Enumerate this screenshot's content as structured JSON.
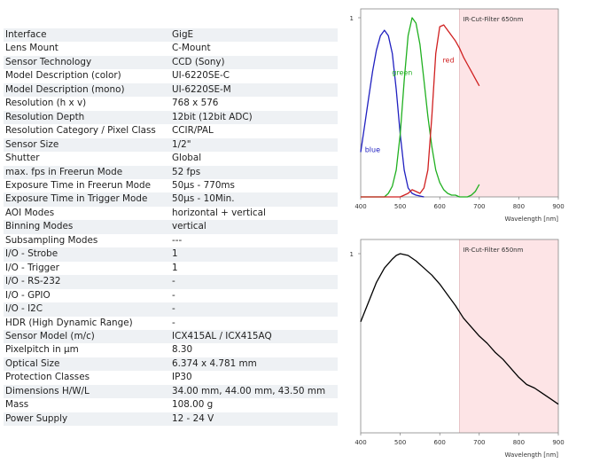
{
  "specs": [
    {
      "label": "Interface",
      "value": "GigE"
    },
    {
      "label": "Lens Mount",
      "value": "C-Mount"
    },
    {
      "label": "Sensor Technology",
      "value": "CCD (Sony)"
    },
    {
      "label": "Model Description (color)",
      "value": "UI-6220SE-C"
    },
    {
      "label": "Model Description (mono)",
      "value": "UI-6220SE-M"
    },
    {
      "label": "Resolution (h x v)",
      "value": "768 x 576"
    },
    {
      "label": "Resolution Depth",
      "value": "12bit (12bit ADC)"
    },
    {
      "label": "Resolution Category / Pixel Class",
      "value": "CCIR/PAL"
    },
    {
      "label": "Sensor Size",
      "value": "1/2\""
    },
    {
      "label": "Shutter",
      "value": "Global"
    },
    {
      "label": "max. fps in Freerun Mode",
      "value": "52 fps"
    },
    {
      "label": "Exposure Time in Freerun Mode",
      "value": "50µs - 770ms"
    },
    {
      "label": "Exposure Time in Trigger Mode",
      "value": "50µs - 10Min."
    },
    {
      "label": "AOI Modes",
      "value": "horizontal + vertical"
    },
    {
      "label": "Binning Modes",
      "value": "vertical"
    },
    {
      "label": "Subsampling Modes",
      "value": "---"
    },
    {
      "label": "I/O - Strobe",
      "value": "1"
    },
    {
      "label": "I/O - Trigger",
      "value": "1"
    },
    {
      "label": "I/O - RS-232",
      "value": "-"
    },
    {
      "label": "I/O - GPIO",
      "value": "-"
    },
    {
      "label": "I/O - I2C",
      "value": "-"
    },
    {
      "label": "HDR (High Dynamic Range)",
      "value": "-"
    },
    {
      "label": "Sensor Model (m/c)",
      "value": "ICX415AL / ICX415AQ"
    },
    {
      "label": "Pixelpitch in µm",
      "value": "8.30"
    },
    {
      "label": "Optical Size",
      "value": "6.374 x 4.781 mm"
    },
    {
      "label": "Protection Classes",
      "value": "IP30"
    },
    {
      "label": "Dimensions H/W/L",
      "value": "34.00 mm, 44.00 mm, 43.50 mm"
    },
    {
      "label": "Mass",
      "value": "108.00 g"
    },
    {
      "label": "Power Supply",
      "value": "12 - 24 V"
    }
  ],
  "chart_data": [
    {
      "type": "line",
      "title": "",
      "xlabel": "Wavelength [nm]",
      "ylabel": "",
      "xlim": [
        400,
        900
      ],
      "ylim": [
        0,
        1
      ],
      "xticks": [
        400,
        500,
        600,
        700,
        800,
        900
      ],
      "yticks": [
        1
      ],
      "grid": false,
      "legend": "inline labels",
      "annotation": {
        "text": "IR-Cut-Filter 650nm",
        "range": [
          650,
          900
        ],
        "color": "#fde4e6"
      },
      "series": [
        {
          "name": "blue",
          "color": "#2020c0",
          "x": [
            400,
            410,
            420,
            430,
            440,
            450,
            460,
            470,
            480,
            490,
            500,
            510,
            520,
            530,
            540,
            550,
            560
          ],
          "y": [
            0.25,
            0.4,
            0.55,
            0.7,
            0.82,
            0.9,
            0.93,
            0.9,
            0.8,
            0.6,
            0.35,
            0.15,
            0.05,
            0.02,
            0.01,
            0.005,
            0.0
          ]
        },
        {
          "name": "green",
          "color": "#20b020",
          "x": [
            400,
            430,
            460,
            470,
            480,
            490,
            500,
            510,
            520,
            530,
            540,
            550,
            560,
            570,
            580,
            590,
            600,
            610,
            620,
            630,
            640,
            650,
            660,
            670,
            680,
            690,
            700
          ],
          "y": [
            0.0,
            0.0,
            0.0,
            0.02,
            0.06,
            0.15,
            0.35,
            0.65,
            0.9,
            1.0,
            0.97,
            0.85,
            0.65,
            0.45,
            0.28,
            0.15,
            0.08,
            0.04,
            0.02,
            0.01,
            0.01,
            0.0,
            0.0,
            0.0,
            0.01,
            0.03,
            0.07
          ]
        },
        {
          "name": "red",
          "color": "#d02020",
          "x": [
            400,
            450,
            480,
            500,
            510,
            520,
            530,
            540,
            550,
            560,
            570,
            580,
            590,
            600,
            610,
            620,
            630,
            640,
            650,
            660,
            670,
            680,
            690,
            700
          ],
          "y": [
            0.0,
            0.0,
            0.0,
            0.0,
            0.01,
            0.02,
            0.04,
            0.03,
            0.02,
            0.05,
            0.15,
            0.45,
            0.8,
            0.95,
            0.96,
            0.93,
            0.9,
            0.87,
            0.83,
            0.78,
            0.74,
            0.7,
            0.66,
            0.62
          ]
        }
      ]
    },
    {
      "type": "line",
      "title": "",
      "xlabel": "Wavelength [nm]",
      "ylabel": "",
      "xlim": [
        400,
        900
      ],
      "ylim": [
        0,
        1
      ],
      "xticks": [
        400,
        500,
        600,
        700,
        800,
        900
      ],
      "yticks": [
        1
      ],
      "grid": false,
      "legend": "none",
      "annotation": {
        "text": "IR-Cut-Filter 650nm",
        "range": [
          650,
          900
        ],
        "color": "#fde4e6"
      },
      "series": [
        {
          "name": "",
          "color": "#000000",
          "x": [
            400,
            420,
            440,
            460,
            480,
            490,
            500,
            520,
            540,
            560,
            580,
            600,
            620,
            640,
            660,
            680,
            700,
            720,
            740,
            760,
            780,
            800,
            820,
            840,
            860,
            880,
            900
          ],
          "y": [
            0.62,
            0.73,
            0.84,
            0.92,
            0.97,
            0.99,
            1.0,
            0.99,
            0.96,
            0.92,
            0.88,
            0.83,
            0.77,
            0.71,
            0.64,
            0.59,
            0.54,
            0.5,
            0.45,
            0.41,
            0.36,
            0.31,
            0.27,
            0.25,
            0.22,
            0.19,
            0.16
          ]
        }
      ]
    }
  ]
}
